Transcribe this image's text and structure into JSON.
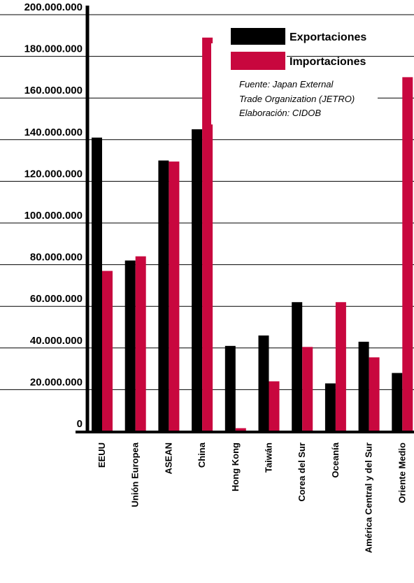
{
  "chart_data": {
    "type": "bar",
    "categories": [
      "EEUU",
      "Unión Europea",
      "ASEAN",
      "China",
      "Hong Kong",
      "Taiwán",
      "Corea del Sur",
      "Oceanía",
      "América Central y del Sur",
      "Oriente Medio"
    ],
    "series": [
      {
        "name": "Exportaciones",
        "color": "#000000",
        "values": [
          141000000,
          82000000,
          130000000,
          145000000,
          41000000,
          46000000,
          62000000,
          23000000,
          43000000,
          28000000
        ]
      },
      {
        "name": "Importaciones",
        "color": "#c8073e",
        "values": [
          77000000,
          84000000,
          129500000,
          189000000,
          1500000,
          24000000,
          40500000,
          62000000,
          35500000,
          170000000
        ]
      }
    ],
    "ylim": [
      0,
      200000000
    ],
    "yticks": [
      "0",
      "20.000.000",
      "40.000.000",
      "60.000.000",
      "80.000.000",
      "100.000.000",
      "120.000.000",
      "140.000.000",
      "160.000.000",
      "180.000.000",
      "200.000.000"
    ],
    "grid": true,
    "legend_position": "top-right",
    "source_lines": [
      "Fuente: Japan External",
      "Trade Organization (JETRO)",
      "Elaboración: CIDOB"
    ]
  }
}
